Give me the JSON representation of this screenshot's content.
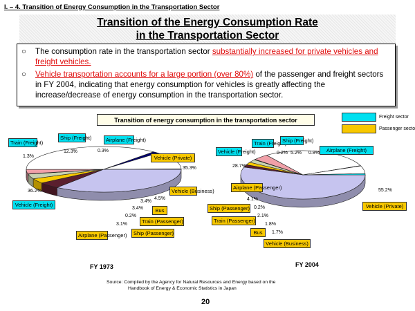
{
  "header": {
    "section": "I. – 4. Transition of Energy Consumption in the Transportation Sector"
  },
  "title": {
    "line1": "Transition of the Energy Consumption Rate",
    "line2": "in the Transportation Sector"
  },
  "bullets": {
    "b1_pre": "The consumption rate in the transportation sector ",
    "b1_red": "substantially increased  for private vehicles and freight vehicles.",
    "b2_red": "Vehicle transportation accounts for a large portion (over 80%)",
    "b2_post": " of the passenger and freight sectors in FY 2004,  indicating that energy  consumption for vehicles is greatly affecting the increase/decrease of energy consumption in the transportation sector."
  },
  "legend": {
    "freight": "Freight sector",
    "passenger": "Passenger sector"
  },
  "source": {
    "line1": "Source:   Compiled by the Agency for Natural Resources and Energy based on the",
    "line2": "Handbook of Energy & Economic Statistics in Japan"
  },
  "page_number": "20",
  "colors": {
    "freight": "#00e0f0",
    "passenger": "#f8c800",
    "vehicle_private": "#c6c4ef",
    "vehicle_freight": "#ffffff",
    "vehicle_business": "#5a1f2e",
    "train_freight": "#000070",
    "ship_freight": "#ffffff",
    "airplane_passenger": "#f0a0a8",
    "ship_passenger": "#d9f2f5",
    "train_passenger": "#c9d2b0"
  },
  "chart_data": {
    "type": "pie",
    "title": "Transition of energy consumption in the transportation sector",
    "charts": [
      {
        "year_label": "FY 1973",
        "slices": [
          {
            "name": "Vehicle (Private)",
            "sector": "passenger",
            "value": 35.3
          },
          {
            "name": "Vehicle (Business)",
            "sector": "passenger",
            "value": 4.5
          },
          {
            "name": "Bus",
            "sector": "passenger",
            "value": 3.4
          },
          {
            "name": "Train (Passenger)",
            "sector": "passenger",
            "value": 3.4
          },
          {
            "name": "Ship (Passenger)",
            "sector": "passenger",
            "value": 0.2
          },
          {
            "name": "Airplane (Passenger)",
            "sector": "passenger",
            "value": 3.1
          },
          {
            "name": "Vehicle (Freight)",
            "sector": "freight",
            "value": 36.2
          },
          {
            "name": "Train (Freight)",
            "sector": "freight",
            "value": 1.3
          },
          {
            "name": "Ship (Freight)",
            "sector": "freight",
            "value": 12.3
          },
          {
            "name": "Airplane (Freight)",
            "sector": "freight",
            "value": 0.3
          }
        ]
      },
      {
        "year_label": "FY 2004",
        "slices": [
          {
            "name": "Vehicle (Private)",
            "sector": "passenger",
            "value": 55.2
          },
          {
            "name": "Vehicle (Business)",
            "sector": "passenger",
            "value": 1.7
          },
          {
            "name": "Bus",
            "sector": "passenger",
            "value": 1.8
          },
          {
            "name": "Train (Passenger)",
            "sector": "passenger",
            "value": 2.1
          },
          {
            "name": "Ship (Passenger)",
            "sector": "passenger",
            "value": 0.2
          },
          {
            "name": "Airplane (Passenger)",
            "sector": "passenger",
            "value": 4.1
          },
          {
            "name": "Vehicle (Freight)",
            "sector": "freight",
            "value": 28.7
          },
          {
            "name": "Train (Freight)",
            "sector": "freight",
            "value": 0.2
          },
          {
            "name": "Ship (Freight)",
            "sector": "freight",
            "value": 5.2
          },
          {
            "name": "Airplane (Freight)",
            "sector": "freight",
            "value": 0.8
          }
        ]
      }
    ]
  }
}
